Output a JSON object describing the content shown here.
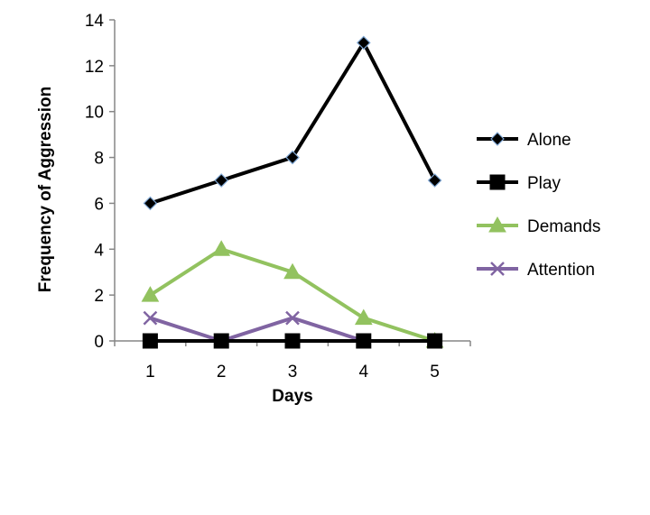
{
  "chart_data": {
    "type": "line",
    "title": "",
    "xlabel": "Days",
    "ylabel": "Frequency of Aggression",
    "x": [
      1,
      2,
      3,
      4,
      5
    ],
    "x_tick_labels": [
      "1",
      "2",
      "3",
      "4",
      "5"
    ],
    "ylim": [
      0,
      14
    ],
    "y_ticks": [
      0,
      2,
      4,
      6,
      8,
      10,
      12,
      14
    ],
    "y_tick_labels": [
      "0",
      "2",
      "4",
      "6",
      "8",
      "10",
      "12",
      "14"
    ],
    "grid": false,
    "legend_position": "right",
    "series": [
      {
        "name": "Alone",
        "values": [
          6,
          7,
          8,
          13,
          7
        ],
        "color": "#000000",
        "marker": "diamond",
        "marker_color": "#000000",
        "marker_edge": "#7fa7d4"
      },
      {
        "name": "Play",
        "values": [
          0,
          0,
          0,
          0,
          0
        ],
        "color": "#000000",
        "marker": "square",
        "marker_color": "#000000",
        "marker_edge": "#000000"
      },
      {
        "name": "Demands",
        "values": [
          2,
          4,
          3,
          1,
          0
        ],
        "color": "#92c25f",
        "marker": "triangle",
        "marker_color": "#92c25f",
        "marker_edge": "#92c25f"
      },
      {
        "name": "Attention",
        "values": [
          1,
          0,
          1,
          0,
          0
        ],
        "color": "#8064a2",
        "marker": "x",
        "marker_color": "#8064a2",
        "marker_edge": "#8064a2"
      }
    ]
  }
}
